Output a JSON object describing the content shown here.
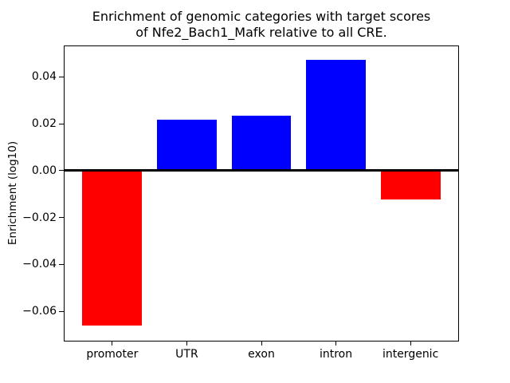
{
  "chart_data": {
    "type": "bar",
    "title_lines": [
      "Enrichment of genomic categories with target scores",
      "of Nfe2_Bach1_Mafk relative to all CRE."
    ],
    "xlabel": "",
    "ylabel": "Enrichment (log10)",
    "categories": [
      "promoter",
      "UTR",
      "exon",
      "intron",
      "intergenic"
    ],
    "values": [
      -0.0662,
      0.0218,
      0.0235,
      0.0473,
      -0.0124
    ],
    "bar_colors": [
      "#ff0000",
      "#0000ff",
      "#0000ff",
      "#0000ff",
      "#ff0000"
    ],
    "positive_color": "#0000ff",
    "negative_color": "#ff0000",
    "bar_width": 0.8,
    "xlim": [
      -0.64,
      4.64
    ],
    "ylim": [
      -0.0725,
      0.053
    ],
    "yticks": [
      {
        "value": -0.06,
        "label": "−0.06"
      },
      {
        "value": -0.04,
        "label": "−0.04"
      },
      {
        "value": -0.02,
        "label": "−0.02"
      },
      {
        "value": 0.0,
        "label": "0.00"
      },
      {
        "value": 0.02,
        "label": "0.02"
      },
      {
        "value": 0.04,
        "label": "0.04"
      }
    ],
    "grid": false,
    "legend": null,
    "zero_line_color": "#000000",
    "spine_color": "#000000",
    "background_color": "#ffffff"
  }
}
